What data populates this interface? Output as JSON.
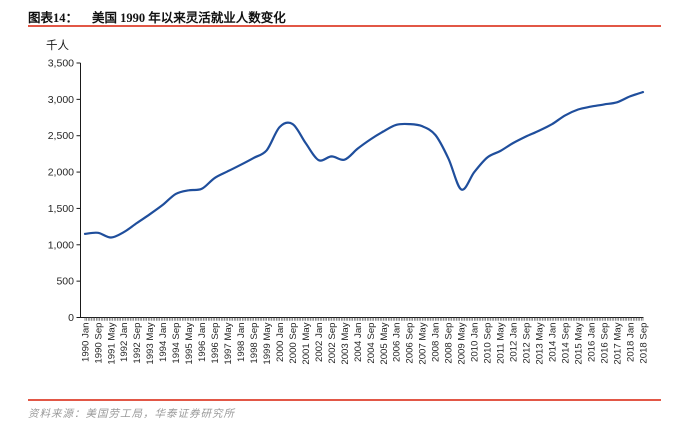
{
  "header": {
    "figure_label": "图表14：",
    "title": "美国 1990 年以来灵活就业人数变化"
  },
  "chart_data": {
    "type": "line",
    "title": "美国 1990 年以来灵活就业人数变化",
    "unit_label": "千人",
    "ylabel": "千人",
    "ylim": [
      0,
      3500
    ],
    "ytick_step": 500,
    "ytick_labels": [
      "0",
      "500",
      "1,000",
      "1,500",
      "2,000",
      "2,500",
      "3,000",
      "3,500"
    ],
    "x_range_months": 345,
    "label_interval_months": 8,
    "grid": false,
    "legend_position": "none",
    "categories": [
      "1990 Jan",
      "1990 Sep",
      "1991 May",
      "1992 Jan",
      "1992 Sep",
      "1993 May",
      "1994 Jan",
      "1994 Sep",
      "1995 May",
      "1996 Jan",
      "1996 Sep",
      "1997 May",
      "1998 Jan",
      "1998 Sep",
      "1999 May",
      "2000 Jan",
      "2000 Sep",
      "2001 May",
      "2002 Jan",
      "2002 Sep",
      "2003 May",
      "2004 Jan",
      "2004 Sep",
      "2005 May",
      "2006 Jan",
      "2006 Sep",
      "2007 May",
      "2008 Jan",
      "2008 Sep",
      "2009 May",
      "2010 Jan",
      "2010 Sep",
      "2011 May",
      "2012 Jan",
      "2012 Sep",
      "2013 May",
      "2014 Jan",
      "2014 Sep",
      "2015 May",
      "2016 Jan",
      "2016 Sep",
      "2017 May",
      "2018 Jan",
      "2018 Sep"
    ],
    "series": [
      {
        "name": "灵活就业人数",
        "color": "#1f4e9c",
        "values": [
          1150,
          1165,
          1100,
          1175,
          1300,
          1420,
          1550,
          1700,
          1750,
          1770,
          1920,
          2010,
          2100,
          2195,
          2300,
          2620,
          2660,
          2400,
          2165,
          2215,
          2170,
          2320,
          2450,
          2560,
          2650,
          2660,
          2630,
          2510,
          2190,
          1760,
          2000,
          2200,
          2290,
          2400,
          2490,
          2570,
          2660,
          2780,
          2860,
          2900,
          2930,
          2960,
          3040,
          3100
        ]
      }
    ]
  },
  "footer": {
    "source_text": "资料来源：美国劳工局，华泰证券研究所"
  },
  "colors": {
    "accent_red": "#e25746",
    "line_blue": "#1f4e9c",
    "axis": "#1a1a1a",
    "tick": "#444444",
    "label_text": "#262626",
    "source_gray": "#9a9a9a"
  }
}
